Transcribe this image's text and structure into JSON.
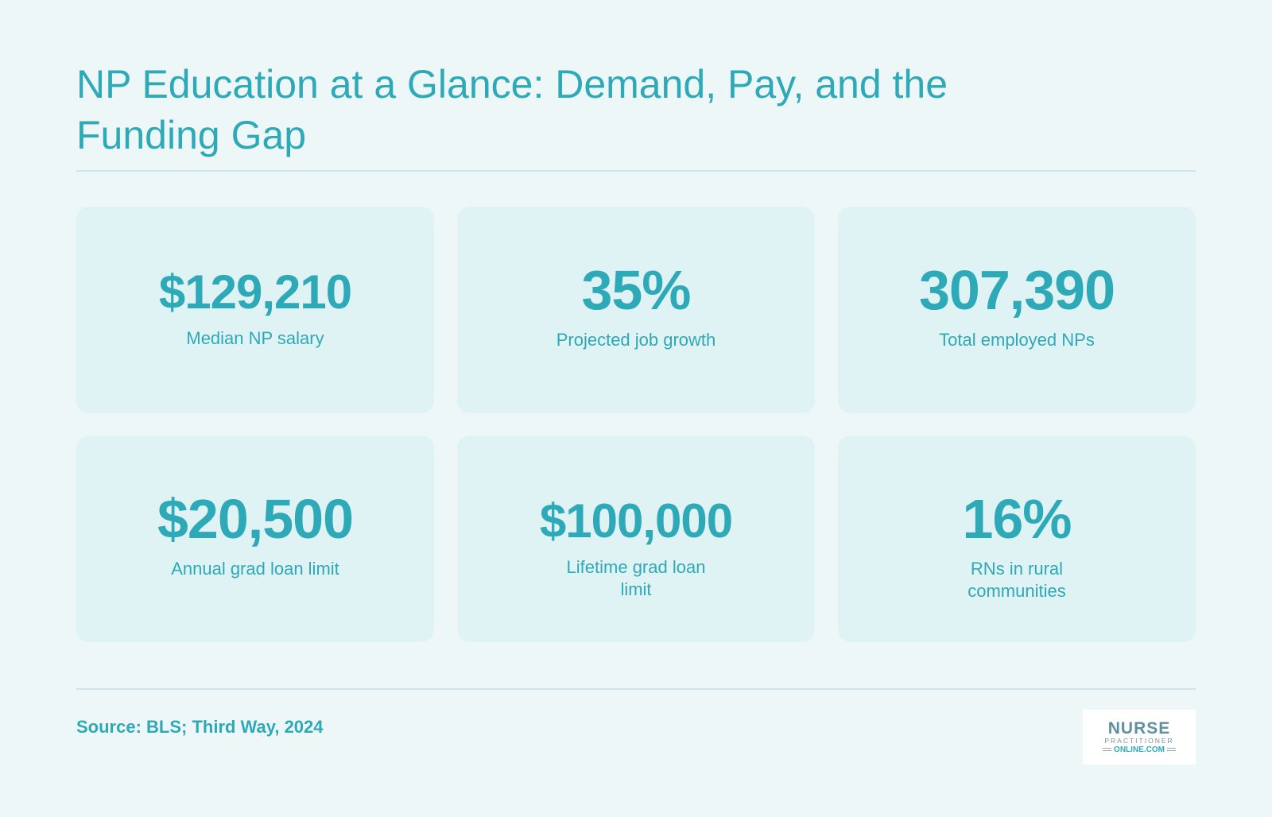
{
  "title": "NP Education at a Glance: Demand, Pay, and the Funding Gap",
  "stats": [
    {
      "value": "$129,210",
      "label": "Median NP salary"
    },
    {
      "value": "35%",
      "label": "Projected job growth"
    },
    {
      "value": "307,390",
      "label": "Total employed NPs"
    },
    {
      "value": "$20,500",
      "label": "Annual grad loan limit"
    },
    {
      "value": "$100,000",
      "label": "Lifetime grad loan limit"
    },
    {
      "value": "16%",
      "label": "RNs in rural communities"
    }
  ],
  "source": "Source: BLS; Third Way, 2024",
  "logo": {
    "line1": "NURSE",
    "line2": "PRACTITIONER",
    "line3": "ONLINE.COM"
  },
  "colors": {
    "background": "#eef7f8",
    "card": "#dff2f4",
    "accent": "#2ea9b7",
    "divider": "#c9e7ea"
  }
}
